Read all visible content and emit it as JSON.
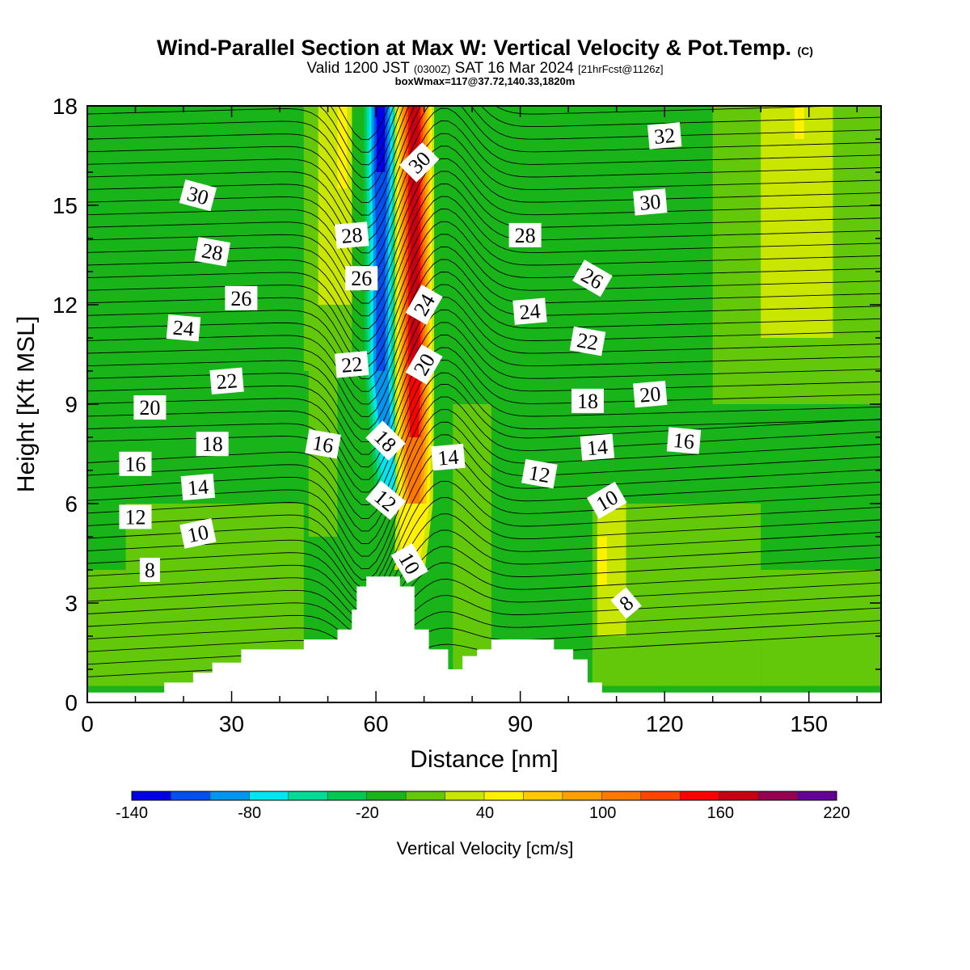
{
  "title": {
    "main": "Wind-Parallel Section at Max W: Vertical Velocity & Pot.Temp.",
    "copyright": "(C)",
    "valid_prefix": "Valid 1200 JST",
    "valid_utc": "(0300Z)",
    "valid_date": "SAT 16 Mar 2024",
    "forecast": "[21hrFcst@1126z]",
    "box_info": "boxWmax=117@37.72,140.33,1820m"
  },
  "chart_data": {
    "type": "heatmap",
    "xlabel": "Distance [nm]",
    "ylabel": "Height [Kft MSL]",
    "xlim": [
      0,
      165
    ],
    "ylim": [
      0,
      18
    ],
    "x_ticks": [
      "0",
      "30",
      "60",
      "90",
      "120",
      "150"
    ],
    "y_ticks": [
      "0",
      "3",
      "6",
      "9",
      "12",
      "15",
      "18"
    ],
    "colorbar": {
      "title": "Vertical Velocity [cm/s]",
      "labels": [
        "-140",
        "-80",
        "-20",
        "40",
        "100",
        "160",
        "220"
      ],
      "bounds": [
        -140,
        220
      ],
      "step": 20,
      "colors": [
        "#0000e6",
        "#0050f0",
        "#0096f0",
        "#00e6f0",
        "#00dc96",
        "#00c850",
        "#19b419",
        "#64c80a",
        "#c8e600",
        "#fff000",
        "#ffc800",
        "#ffa000",
        "#ff7800",
        "#ff4600",
        "#ff0000",
        "#c80014",
        "#960050",
        "#640096"
      ]
    },
    "w_field": {
      "background": "#19b419",
      "structures": [
        {
          "x": [
            55,
            65
          ],
          "y": [
            0.5,
            18
          ],
          "w": -20
        },
        {
          "x": [
            70,
            78
          ],
          "y": [
            0.5,
            18
          ],
          "w": -20
        },
        {
          "x": [
            104,
            122
          ],
          "y": [
            8,
            18
          ],
          "w": -20
        },
        {
          "x": [
            7,
            15
          ],
          "y": [
            13,
            18
          ],
          "w": -20
        },
        {
          "x": [
            0,
            8
          ],
          "y": [
            0.5,
            4
          ],
          "w": 0
        },
        {
          "x": [
            8,
            45
          ],
          "y": [
            0.5,
            6
          ],
          "w": 0
        },
        {
          "x": [
            46,
            52
          ],
          "y": [
            5,
            10
          ],
          "w": 0
        },
        {
          "x": [
            76,
            84
          ],
          "y": [
            0.5,
            9
          ],
          "w": 0
        },
        {
          "x": [
            105,
            140
          ],
          "y": [
            0.5,
            6
          ],
          "w": 0
        },
        {
          "x": [
            140,
            165
          ],
          "y": [
            0.5,
            4
          ],
          "w": 0
        },
        {
          "x": [
            45,
            55
          ],
          "y": [
            10,
            18
          ],
          "w": 0
        },
        {
          "x": [
            130,
            165
          ],
          "y": [
            9,
            18
          ],
          "w": 0
        },
        {
          "x": [
            48,
            55
          ],
          "y": [
            12,
            18
          ],
          "w": 20
        },
        {
          "x": [
            140,
            155
          ],
          "y": [
            11,
            18
          ],
          "w": 20
        },
        {
          "x": [
            106,
            112
          ],
          "y": [
            2,
            6
          ],
          "w": 20
        },
        {
          "x": [
            52,
            54
          ],
          "y": [
            15.5,
            18
          ],
          "w": 40
        },
        {
          "x": [
            106,
            108
          ],
          "y": [
            3.5,
            5
          ],
          "w": 40
        },
        {
          "x": [
            147,
            149
          ],
          "y": [
            17,
            18
          ],
          "w": 40
        }
      ],
      "updraft": [
        {
          "y": 4,
          "x": 67,
          "w": 40
        },
        {
          "y": 6,
          "x": 68,
          "w": 100
        },
        {
          "y": 8,
          "x": 68,
          "w": 140
        },
        {
          "y": 10,
          "x": 68,
          "w": 160
        },
        {
          "y": 12,
          "x": 68,
          "w": 160
        },
        {
          "y": 14,
          "x": 68,
          "w": 160
        },
        {
          "y": 16,
          "x": 68,
          "w": 160
        },
        {
          "y": 18,
          "x": 68,
          "w": 160
        }
      ],
      "downdraft": [
        {
          "y": 4,
          "x": 64,
          "w": -20
        },
        {
          "y": 6,
          "x": 63,
          "w": -80
        },
        {
          "y": 8,
          "x": 62,
          "w": -100
        },
        {
          "y": 10,
          "x": 61,
          "w": -120
        },
        {
          "y": 12,
          "x": 61,
          "w": -120
        },
        {
          "y": 14,
          "x": 61,
          "w": -120
        },
        {
          "y": 16,
          "x": 61,
          "w": -140
        },
        {
          "y": 18,
          "x": 61,
          "w": -140
        }
      ]
    },
    "terrain": [
      [
        0,
        0.3
      ],
      [
        16,
        0.3
      ],
      [
        16,
        0.6
      ],
      [
        22,
        0.6
      ],
      [
        22,
        0.9
      ],
      [
        26,
        0.9
      ],
      [
        26,
        1.2
      ],
      [
        32,
        1.2
      ],
      [
        32,
        1.6
      ],
      [
        45,
        1.6
      ],
      [
        45,
        1.9
      ],
      [
        52,
        1.9
      ],
      [
        52,
        2.2
      ],
      [
        55,
        2.2
      ],
      [
        55,
        2.8
      ],
      [
        56,
        2.8
      ],
      [
        56,
        3.5
      ],
      [
        58,
        3.5
      ],
      [
        58,
        3.8
      ],
      [
        65,
        3.8
      ],
      [
        65,
        3.5
      ],
      [
        68,
        3.5
      ],
      [
        68,
        2.2
      ],
      [
        71,
        2.2
      ],
      [
        71,
        1.6
      ],
      [
        75,
        1.6
      ],
      [
        75,
        1.0
      ],
      [
        78,
        1.0
      ],
      [
        78,
        1.4
      ],
      [
        81,
        1.4
      ],
      [
        81,
        1.6
      ],
      [
        84,
        1.6
      ],
      [
        84,
        1.9
      ],
      [
        97,
        1.9
      ],
      [
        97,
        1.6
      ],
      [
        101,
        1.6
      ],
      [
        101,
        1.3
      ],
      [
        104,
        1.3
      ],
      [
        104,
        0.6
      ],
      [
        107,
        0.6
      ],
      [
        107,
        0.3
      ],
      [
        165,
        0.3
      ]
    ],
    "theta_labels": [
      {
        "text": "8",
        "x": 13,
        "y": 4.0,
        "rot": 0
      },
      {
        "text": "10",
        "x": 23,
        "y": 5.1,
        "rot": -12
      },
      {
        "text": "12",
        "x": 10,
        "y": 5.6,
        "rot": 0
      },
      {
        "text": "14",
        "x": 23,
        "y": 6.5,
        "rot": -5
      },
      {
        "text": "16",
        "x": 10,
        "y": 7.2,
        "rot": 0
      },
      {
        "text": "18",
        "x": 26,
        "y": 7.8,
        "rot": 0
      },
      {
        "text": "20",
        "x": 13,
        "y": 8.9,
        "rot": 0
      },
      {
        "text": "22",
        "x": 29,
        "y": 9.7,
        "rot": -5
      },
      {
        "text": "24",
        "x": 20,
        "y": 11.3,
        "rot": 5
      },
      {
        "text": "26",
        "x": 32,
        "y": 12.2,
        "rot": 0
      },
      {
        "text": "28",
        "x": 26,
        "y": 13.6,
        "rot": 10
      },
      {
        "text": "30",
        "x": 23,
        "y": 15.3,
        "rot": 15
      },
      {
        "text": "16",
        "x": 49,
        "y": 7.8,
        "rot": 10
      },
      {
        "text": "22",
        "x": 55,
        "y": 10.2,
        "rot": -5
      },
      {
        "text": "26",
        "x": 57,
        "y": 12.8,
        "rot": 0
      },
      {
        "text": "28",
        "x": 55,
        "y": 14.1,
        "rot": -5
      },
      {
        "text": "30",
        "x": 69,
        "y": 16.3,
        "rot": -45
      },
      {
        "text": "24",
        "x": 70,
        "y": 12.0,
        "rot": -60
      },
      {
        "text": "20",
        "x": 70,
        "y": 10.2,
        "rot": -60
      },
      {
        "text": "18",
        "x": 62,
        "y": 7.9,
        "rot": 45
      },
      {
        "text": "12",
        "x": 62,
        "y": 6.1,
        "rot": 40
      },
      {
        "text": "10",
        "x": 67,
        "y": 4.2,
        "rot": 60
      },
      {
        "text": "14",
        "x": 75,
        "y": 7.4,
        "rot": -5
      },
      {
        "text": "28",
        "x": 91,
        "y": 14.1,
        "rot": 0
      },
      {
        "text": "24",
        "x": 92,
        "y": 11.8,
        "rot": -5
      },
      {
        "text": "12",
        "x": 94,
        "y": 6.9,
        "rot": 10
      },
      {
        "text": "18",
        "x": 104,
        "y": 9.1,
        "rot": 0
      },
      {
        "text": "22",
        "x": 104,
        "y": 10.9,
        "rot": 10
      },
      {
        "text": "14",
        "x": 106,
        "y": 7.7,
        "rot": -5
      },
      {
        "text": "26",
        "x": 105,
        "y": 12.8,
        "rot": 30
      },
      {
        "text": "10",
        "x": 108,
        "y": 6.1,
        "rot": -30
      },
      {
        "text": "8",
        "x": 112,
        "y": 3.0,
        "rot": -40
      },
      {
        "text": "20",
        "x": 117,
        "y": 9.3,
        "rot": -5
      },
      {
        "text": "16",
        "x": 124,
        "y": 7.9,
        "rot": 5
      },
      {
        "text": "30",
        "x": 117,
        "y": 15.1,
        "rot": -5
      },
      {
        "text": "32",
        "x": 120,
        "y": 17.1,
        "rot": -5
      }
    ]
  }
}
